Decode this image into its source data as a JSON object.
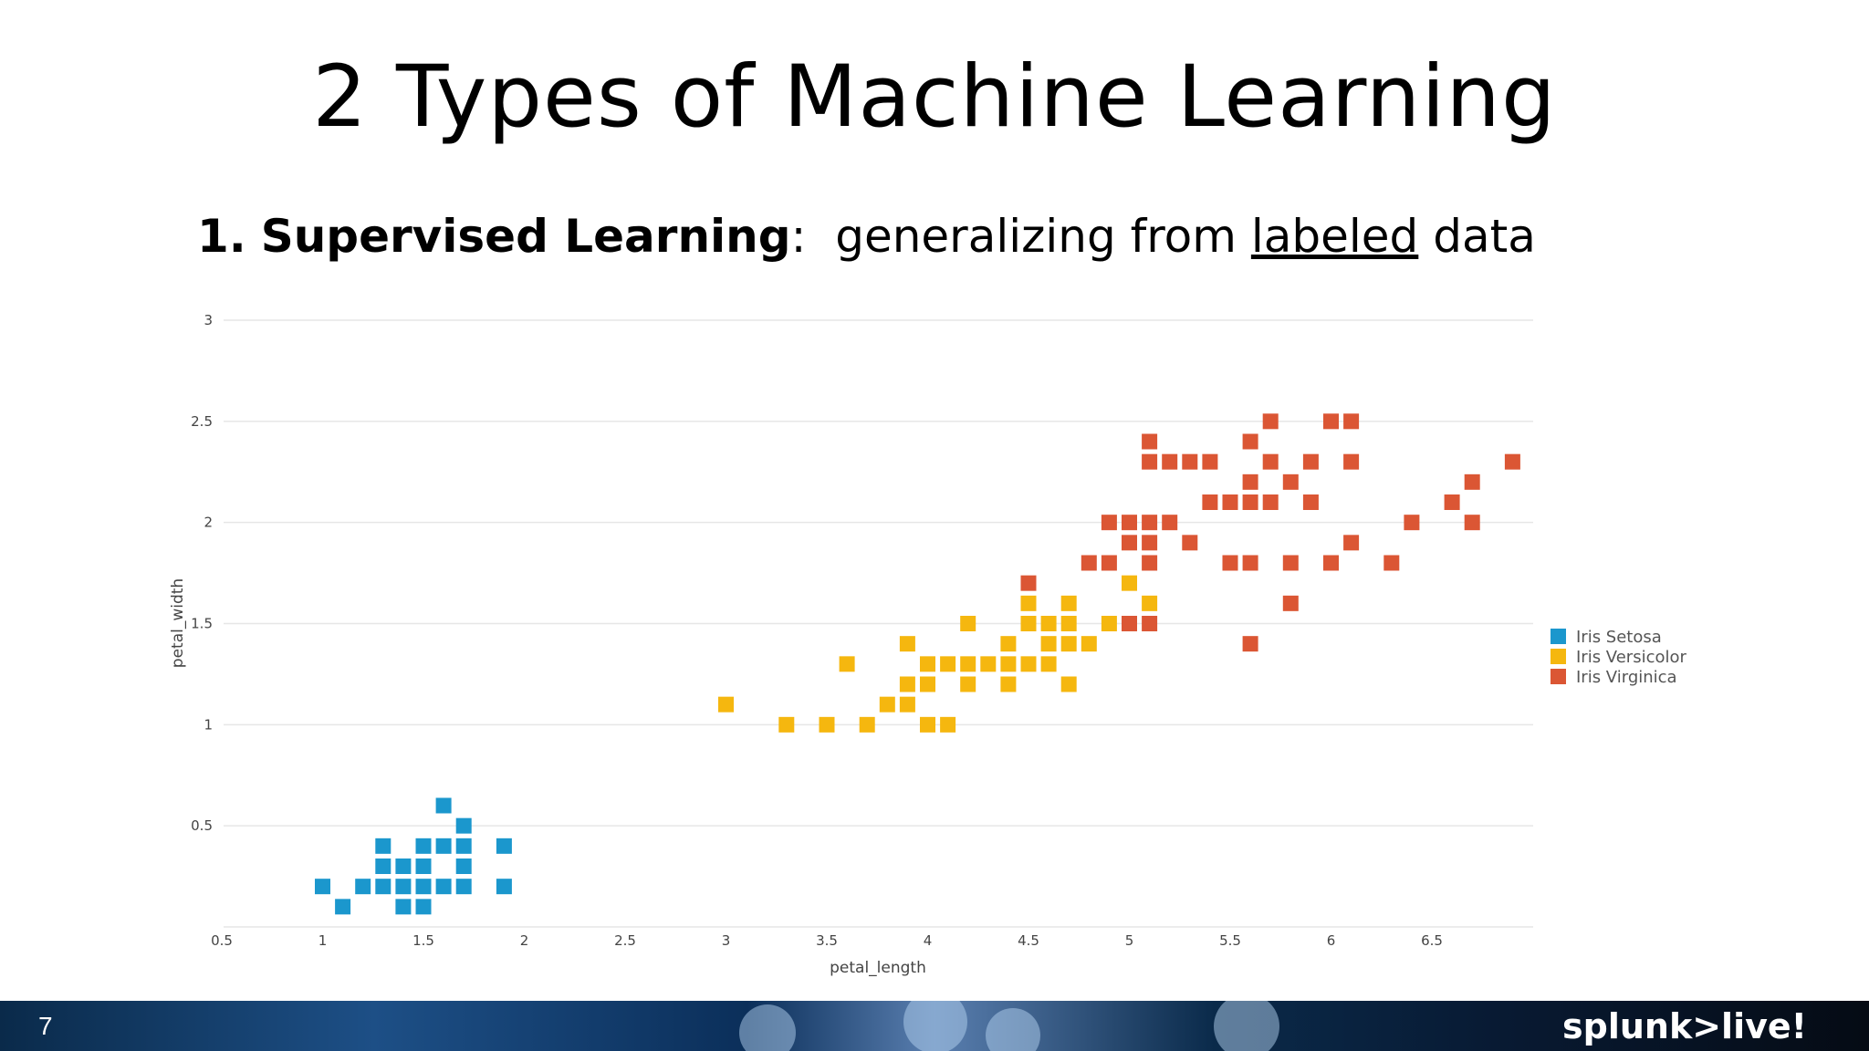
{
  "slide": {
    "title": "2 Types of Machine Learning",
    "subtitle_number": "1.",
    "subtitle_term": "Supervised Learning",
    "subtitle_colon": ":",
    "subtitle_pre": "generalizing from",
    "subtitle_underlined": "labeled",
    "subtitle_post": "data",
    "slide_number": "7",
    "brand": "splunk>live!"
  },
  "chart_data": {
    "type": "scatter",
    "xlabel": "petal_length",
    "ylabel": "petal_width",
    "xlim": [
      0.5,
      7.0
    ],
    "ylim": [
      0,
      3
    ],
    "xticks": [
      "0.5",
      "1",
      "1.5",
      "2",
      "2.5",
      "3",
      "3.5",
      "4",
      "4.5",
      "5",
      "5.5",
      "6",
      "6.5"
    ],
    "yticks": [
      "0.5",
      "1",
      "1.5",
      "2",
      "2.5",
      "3"
    ],
    "grid": "horizontal",
    "legend_position": "right",
    "marker": "square",
    "series": [
      {
        "name": "Iris Setosa",
        "color": "#1b97cd",
        "points": [
          [
            1.0,
            0.2
          ],
          [
            1.1,
            0.1
          ],
          [
            1.2,
            0.2
          ],
          [
            1.3,
            0.2
          ],
          [
            1.3,
            0.3
          ],
          [
            1.3,
            0.4
          ],
          [
            1.4,
            0.1
          ],
          [
            1.4,
            0.2
          ],
          [
            1.4,
            0.3
          ],
          [
            1.5,
            0.1
          ],
          [
            1.5,
            0.2
          ],
          [
            1.5,
            0.3
          ],
          [
            1.5,
            0.4
          ],
          [
            1.6,
            0.2
          ],
          [
            1.6,
            0.4
          ],
          [
            1.6,
            0.6
          ],
          [
            1.7,
            0.2
          ],
          [
            1.7,
            0.3
          ],
          [
            1.7,
            0.4
          ],
          [
            1.7,
            0.5
          ],
          [
            1.9,
            0.2
          ],
          [
            1.9,
            0.4
          ]
        ]
      },
      {
        "name": "Iris Versicolor",
        "color": "#f5b70f",
        "points": [
          [
            3.0,
            1.1
          ],
          [
            3.3,
            1.0
          ],
          [
            3.5,
            1.0
          ],
          [
            3.6,
            1.3
          ],
          [
            3.7,
            1.0
          ],
          [
            3.8,
            1.1
          ],
          [
            3.9,
            1.1
          ],
          [
            3.9,
            1.2
          ],
          [
            3.9,
            1.4
          ],
          [
            4.0,
            1.0
          ],
          [
            4.0,
            1.2
          ],
          [
            4.0,
            1.3
          ],
          [
            4.1,
            1.0
          ],
          [
            4.1,
            1.3
          ],
          [
            4.2,
            1.2
          ],
          [
            4.2,
            1.3
          ],
          [
            4.2,
            1.5
          ],
          [
            4.3,
            1.3
          ],
          [
            4.4,
            1.2
          ],
          [
            4.4,
            1.3
          ],
          [
            4.4,
            1.4
          ],
          [
            4.5,
            1.3
          ],
          [
            4.5,
            1.5
          ],
          [
            4.5,
            1.6
          ],
          [
            4.6,
            1.3
          ],
          [
            4.6,
            1.4
          ],
          [
            4.6,
            1.5
          ],
          [
            4.7,
            1.2
          ],
          [
            4.7,
            1.4
          ],
          [
            4.7,
            1.5
          ],
          [
            4.7,
            1.6
          ],
          [
            4.8,
            1.4
          ],
          [
            4.9,
            1.5
          ],
          [
            5.0,
            1.7
          ],
          [
            5.1,
            1.6
          ]
        ]
      },
      {
        "name": "Iris Virginica",
        "color": "#db5634",
        "points": [
          [
            4.5,
            1.7
          ],
          [
            4.8,
            1.8
          ],
          [
            4.9,
            1.8
          ],
          [
            4.9,
            2.0
          ],
          [
            5.0,
            1.5
          ],
          [
            5.0,
            1.9
          ],
          [
            5.0,
            2.0
          ],
          [
            5.1,
            1.5
          ],
          [
            5.1,
            1.8
          ],
          [
            5.1,
            1.9
          ],
          [
            5.1,
            2.0
          ],
          [
            5.1,
            2.3
          ],
          [
            5.1,
            2.4
          ],
          [
            5.2,
            2.0
          ],
          [
            5.2,
            2.3
          ],
          [
            5.3,
            1.9
          ],
          [
            5.3,
            2.3
          ],
          [
            5.4,
            2.1
          ],
          [
            5.4,
            2.3
          ],
          [
            5.5,
            1.8
          ],
          [
            5.5,
            2.1
          ],
          [
            5.6,
            1.4
          ],
          [
            5.6,
            1.8
          ],
          [
            5.6,
            2.1
          ],
          [
            5.6,
            2.2
          ],
          [
            5.6,
            2.4
          ],
          [
            5.7,
            2.1
          ],
          [
            5.7,
            2.3
          ],
          [
            5.7,
            2.5
          ],
          [
            5.8,
            1.6
          ],
          [
            5.8,
            1.8
          ],
          [
            5.8,
            2.2
          ],
          [
            5.9,
            2.1
          ],
          [
            5.9,
            2.3
          ],
          [
            6.0,
            1.8
          ],
          [
            6.0,
            2.5
          ],
          [
            6.1,
            1.9
          ],
          [
            6.1,
            2.3
          ],
          [
            6.1,
            2.5
          ],
          [
            6.3,
            1.8
          ],
          [
            6.4,
            2.0
          ],
          [
            6.6,
            2.1
          ],
          [
            6.7,
            2.0
          ],
          [
            6.7,
            2.2
          ],
          [
            6.9,
            2.3
          ]
        ]
      }
    ]
  }
}
